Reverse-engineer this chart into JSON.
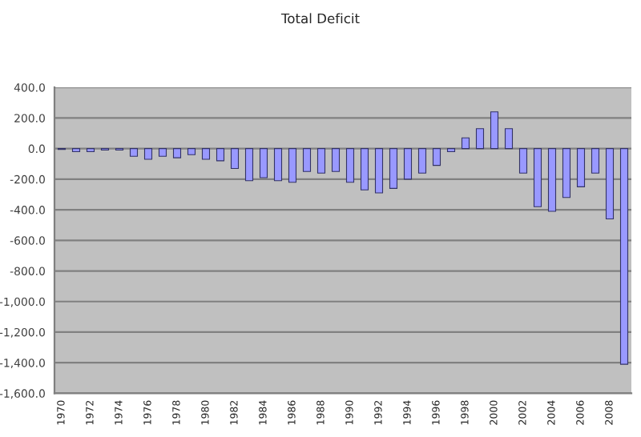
{
  "chart_data": {
    "type": "bar",
    "title": "Total Deficit",
    "categories": [
      "1970",
      null,
      "1972",
      null,
      "1974",
      null,
      "1976",
      null,
      "1978",
      null,
      "1980",
      null,
      "1982",
      null,
      "1984",
      null,
      "1986",
      null,
      "1988",
      null,
      "1990",
      null,
      "1992",
      null,
      "1994",
      null,
      "1996",
      null,
      "1998",
      null,
      "2000",
      null,
      "2002",
      null,
      "2004",
      null,
      "2006",
      null,
      "2008",
      null
    ],
    "values": [
      -5,
      -20,
      -20,
      -10,
      -10,
      -50,
      -70,
      -50,
      -60,
      -40,
      -70,
      -80,
      -130,
      -210,
      -190,
      -210,
      -220,
      -150,
      -160,
      -150,
      -220,
      -270,
      -290,
      -260,
      -200,
      -160,
      -110,
      -20,
      70,
      130,
      240,
      130,
      -160,
      -380,
      -410,
      -320,
      -250,
      -160,
      -460,
      -1410
    ],
    "color": "#9999ff",
    "ylim": [
      -1600,
      400
    ],
    "yticks": [
      {
        "value": 400,
        "label": "400.0"
      },
      {
        "value": 200,
        "label": "200.0"
      },
      {
        "value": 0,
        "label": "0.0"
      },
      {
        "value": -200,
        "label": "-200.0"
      },
      {
        "value": -400,
        "label": "-400.0"
      },
      {
        "value": -600,
        "label": "-600.0"
      },
      {
        "value": -800,
        "label": "-800.0"
      },
      {
        "value": -1000,
        "label": "-1,000.0"
      },
      {
        "value": -1200,
        "label": "-1,200.0"
      },
      {
        "value": -1400,
        "label": "-1,400.0"
      },
      {
        "value": -1600,
        "label": "-1,600.0"
      }
    ],
    "grid": "y"
  }
}
